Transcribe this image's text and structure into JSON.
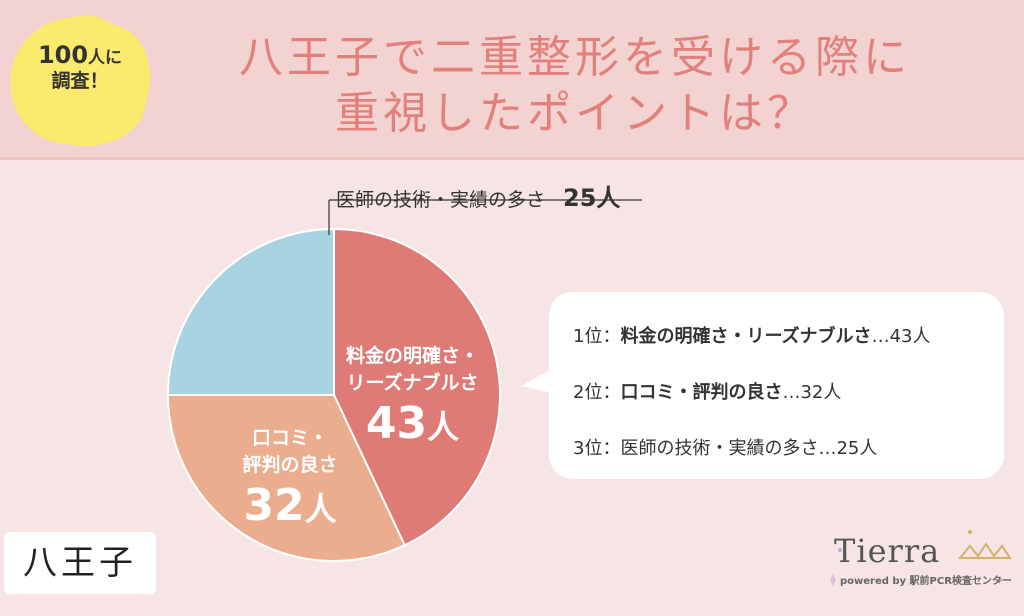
{
  "badge": {
    "count": "100",
    "count_unit": "人に",
    "line2": "調査！"
  },
  "title": {
    "line1": "八王子で二重整形を受ける際に",
    "line2": "重視したポイントは？"
  },
  "chart_data": {
    "type": "pie",
    "unit": "人",
    "slices": [
      {
        "label": "料金の明確さ・リーズナブルさ",
        "label_line1": "料金の明確さ・",
        "label_line2": "リーズナブルさ",
        "value": 43,
        "value_text": "43",
        "color": "#de7b77"
      },
      {
        "label": "口コミ・評判の良さ",
        "label_line1": "口コミ・",
        "label_line2": "評判の良さ",
        "value": 32,
        "value_text": "32",
        "color": "#eaad8d"
      },
      {
        "label": "医師の技術・実績の多さ",
        "value": 25,
        "value_text": "25人",
        "color": "#a8d3e1"
      }
    ]
  },
  "ranking": {
    "items": [
      {
        "rank": "1位：",
        "label": "料金の明確さ・リーズナブルさ",
        "value": "…43人"
      },
      {
        "rank": "2位：",
        "label": "口コミ・評判の良さ",
        "value": "…32人"
      },
      {
        "rank": "3位：",
        "label": "医師の技術・実績の多さ",
        "value": "…25人"
      }
    ]
  },
  "place": "八王子",
  "logo": {
    "word": "Tierra",
    "sub": "powered by 駅前PCR検査センター"
  },
  "colors": {
    "title": "#e2807b",
    "header_bg": "#f2d3d2",
    "page_bg": "#f6e5e4",
    "badge": "#faeb6e"
  }
}
